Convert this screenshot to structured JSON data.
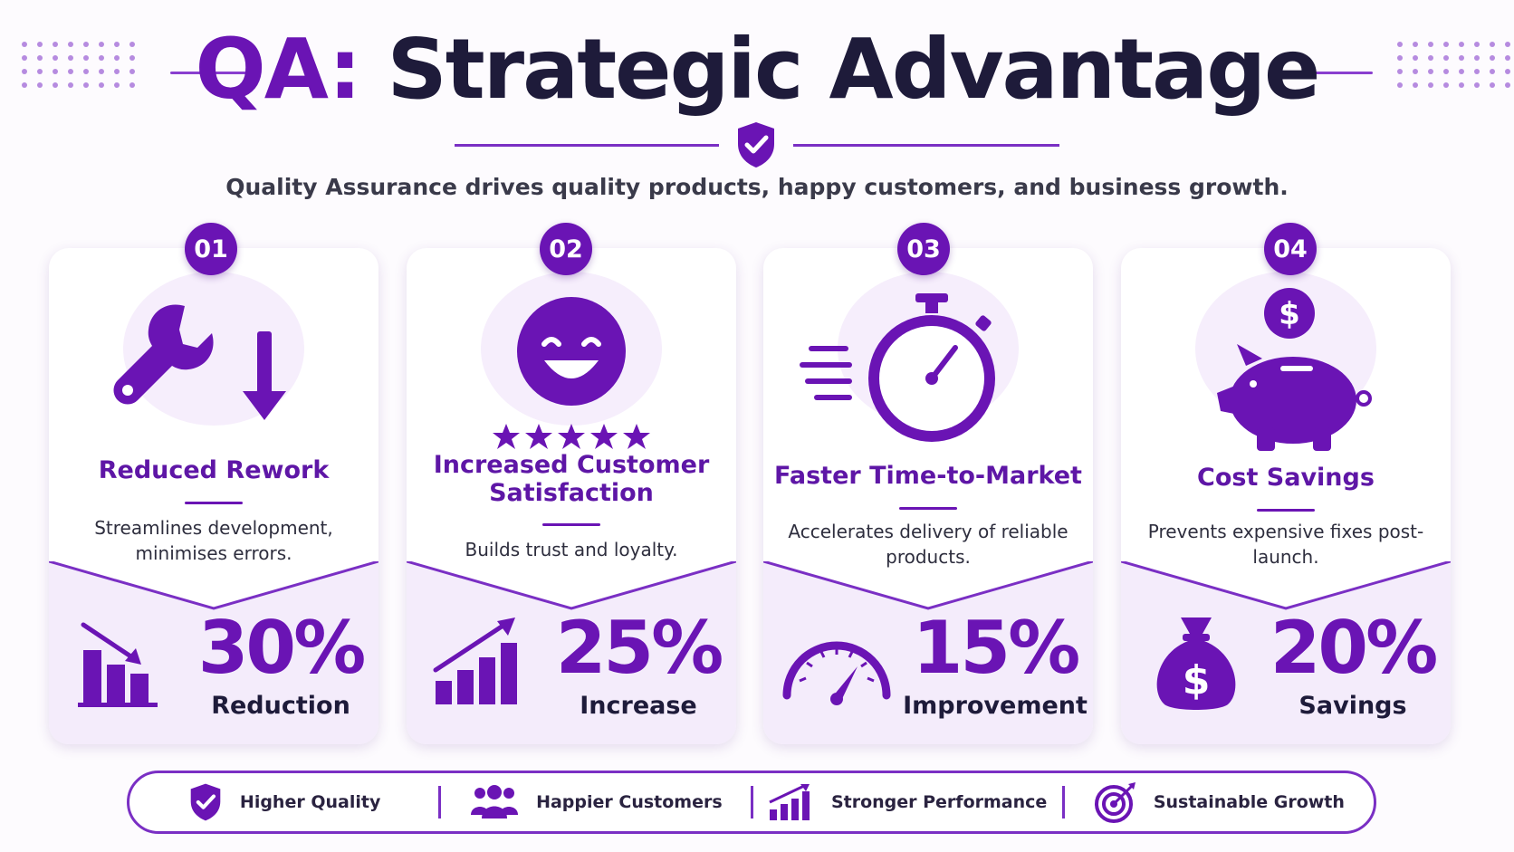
{
  "header": {
    "title_accent": "QA:",
    "title_main": "Strategic Advantage",
    "subtitle": "Quality Assurance drives quality products, happy customers, and business growth.",
    "icon": "shield-check-icon"
  },
  "colors": {
    "accent": "#6a14b4",
    "dark": "#1e1b3a",
    "card_bottom": "#f4ecfb"
  },
  "cards": [
    {
      "badge": "01",
      "icon": "wrench-down-arrow-icon",
      "title": "Reduced Rework",
      "description": "Streamlines development, minimises errors.",
      "stat_icon": "declining-bar-chart-icon",
      "stat_value": "30%",
      "stat_label": "Reduction"
    },
    {
      "badge": "02",
      "icon": "smiley-five-stars-icon",
      "title": "Increased Customer Satisfaction",
      "description": "Builds trust and loyalty.",
      "stat_icon": "rising-bar-chart-icon",
      "stat_value": "25%",
      "stat_label": "Increase"
    },
    {
      "badge": "03",
      "icon": "stopwatch-icon",
      "title": "Faster Time-to-Market",
      "description": "Accelerates delivery of reliable products.",
      "stat_icon": "speedometer-icon",
      "stat_value": "15%",
      "stat_label": "Improvement"
    },
    {
      "badge": "04",
      "icon": "piggy-bank-coin-icon",
      "title": "Cost Savings",
      "description": "Prevents expensive fixes post-launch.",
      "stat_icon": "money-bag-icon",
      "stat_value": "20%",
      "stat_label": "Savings"
    }
  ],
  "footer": [
    {
      "icon": "shield-check-icon",
      "label": "Higher Quality"
    },
    {
      "icon": "people-icon",
      "label": "Happier Customers"
    },
    {
      "icon": "growth-chart-icon",
      "label": "Stronger Performance"
    },
    {
      "icon": "target-arrow-icon",
      "label": "Sustainable Growth"
    }
  ]
}
